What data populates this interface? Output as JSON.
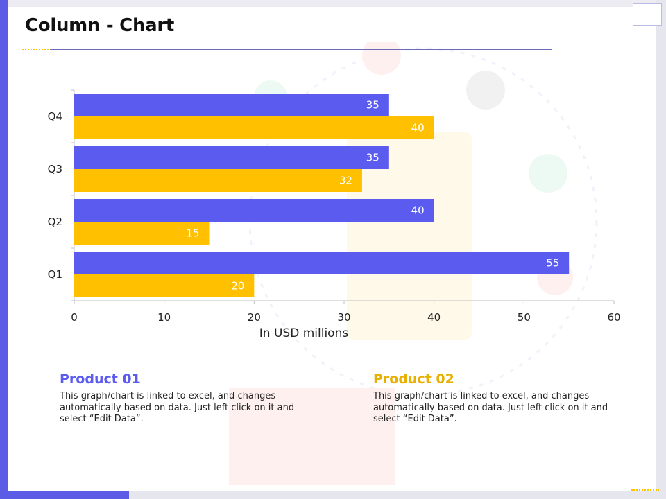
{
  "page": {
    "title": "Column - Chart"
  },
  "colors": {
    "product_01": "#5b5bf0",
    "product_02": "#ffc000",
    "accent": "#5b5be6"
  },
  "chart_data": {
    "type": "bar",
    "orientation": "horizontal",
    "categories": [
      "Q1",
      "Q2",
      "Q3",
      "Q4"
    ],
    "series": [
      {
        "name": "Product 01",
        "values": [
          55,
          40,
          35,
          35
        ]
      },
      {
        "name": "Product 02",
        "values": [
          20,
          15,
          32,
          40
        ]
      }
    ],
    "xlabel": "In USD millions",
    "ylabel": "",
    "xlim": [
      0,
      60
    ],
    "xticks": [
      0,
      10,
      20,
      30,
      40,
      50,
      60
    ],
    "grid": false,
    "data_labels": true
  },
  "products": [
    {
      "title": "Product 01",
      "text": "This graph/chart is linked to excel, and changes automatically based on data. Just left click on it and select “Edit Data”."
    },
    {
      "title": "Product 02",
      "text": "This graph/chart is linked to excel, and changes automatically based on data. Just left click on it and select “Edit Data”."
    }
  ]
}
